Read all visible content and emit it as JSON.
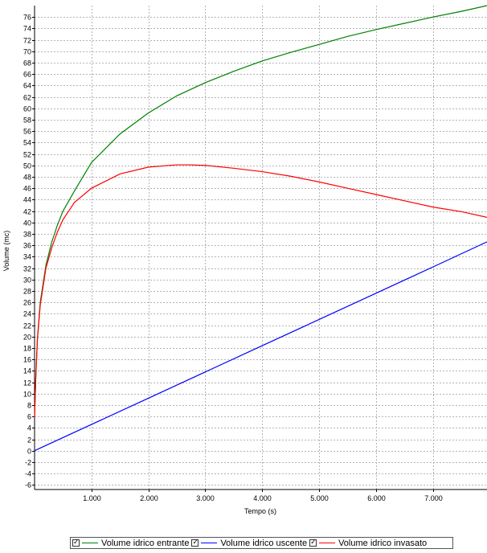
{
  "chart_data": {
    "type": "line",
    "title": "",
    "xlabel": "Tempo (s)",
    "ylabel": "Volume (mc)",
    "xlim": [
      0,
      7950
    ],
    "ylim": [
      -6.8,
      78
    ],
    "x_ticks": [
      1000,
      2000,
      3000,
      4000,
      5000,
      6000,
      7000
    ],
    "x_tick_labels": [
      "1.000",
      "2.000",
      "3.000",
      "4.000",
      "5.000",
      "6.000",
      "7.000"
    ],
    "y_ticks": [
      -6,
      -4,
      -2,
      0,
      2,
      4,
      6,
      8,
      10,
      12,
      14,
      16,
      18,
      20,
      22,
      24,
      26,
      28,
      30,
      32,
      34,
      36,
      38,
      40,
      42,
      44,
      46,
      48,
      50,
      52,
      54,
      56,
      58,
      60,
      62,
      64,
      66,
      68,
      70,
      72,
      74,
      76
    ],
    "grid": true,
    "legend_position": "bottom",
    "series": [
      {
        "name": "Volume idrico entrante",
        "color": "#008000",
        "x": [
          0,
          20,
          50,
          100,
          200,
          300,
          400,
          500,
          700,
          1000,
          1500,
          2000,
          2500,
          3000,
          3500,
          4000,
          4500,
          5000,
          5500,
          6000,
          6500,
          7000,
          7500,
          7950
        ],
        "y": [
          5.8,
          12.5,
          19.5,
          26,
          32.5,
          36.5,
          39.5,
          42,
          45.5,
          50.5,
          55.5,
          59.2,
          62.2,
          64.5,
          66.5,
          68.3,
          69.8,
          71.2,
          72.6,
          73.8,
          74.9,
          76,
          77,
          78
        ]
      },
      {
        "name": "Volume idrico uscente",
        "color": "#0000ff",
        "x": [
          0,
          1000,
          2000,
          3000,
          4000,
          5000,
          6000,
          7000,
          7950
        ],
        "y": [
          0,
          4.6,
          9.2,
          13.8,
          18.4,
          23,
          27.6,
          32.2,
          36.6
        ]
      },
      {
        "name": "Volume idrico invasato",
        "color": "#ff0000",
        "x": [
          0,
          20,
          50,
          100,
          200,
          300,
          400,
          500,
          700,
          1000,
          1500,
          2000,
          2500,
          2700,
          3000,
          3500,
          4000,
          4500,
          5000,
          5500,
          6000,
          6500,
          7000,
          7500,
          7950
        ],
        "y": [
          5.8,
          12.5,
          19.5,
          25.5,
          32,
          35.5,
          38.3,
          40.5,
          43.5,
          46,
          48.5,
          49.7,
          50.1,
          50.1,
          50,
          49.5,
          48.9,
          48.1,
          47.1,
          46,
          44.9,
          43.8,
          42.7,
          41.9,
          40.9
        ]
      }
    ]
  }
}
